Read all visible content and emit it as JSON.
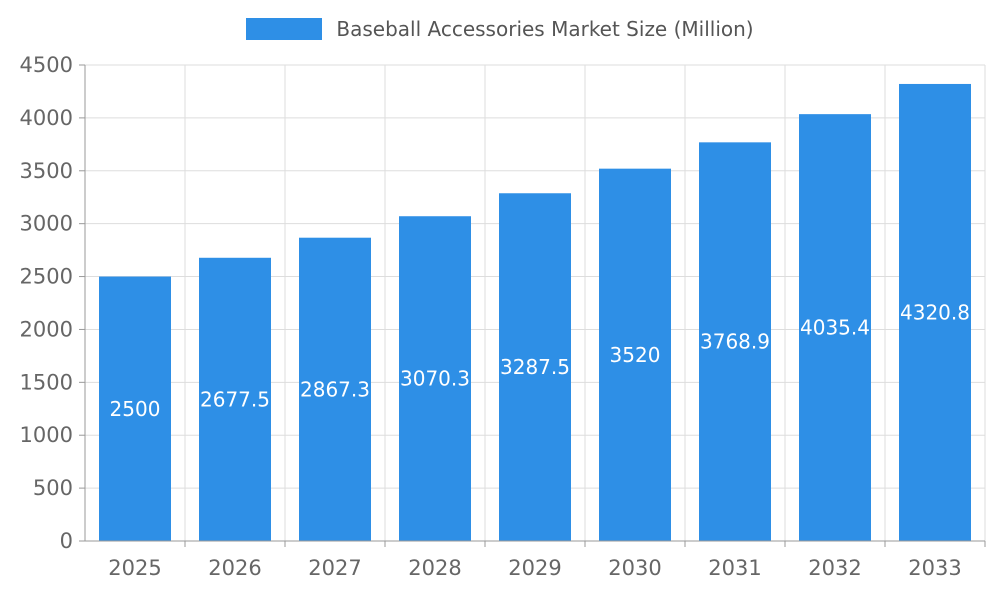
{
  "colors": {
    "bar": "#2E8FE6",
    "grid": "#DDDDDD",
    "axis": "#999999",
    "tick_text": "#666666",
    "title_text": "#555555",
    "value_text": "#FFFFFF"
  },
  "chart_data": {
    "type": "bar",
    "title": "Baseball Accessories Market Size (Million)",
    "categories": [
      "2025",
      "2026",
      "2027",
      "2028",
      "2029",
      "2030",
      "2031",
      "2032",
      "2033"
    ],
    "values": [
      2500,
      2677.5,
      2867.3,
      3070.3,
      3287.5,
      3520,
      3768.9,
      4035.4,
      4320.8
    ],
    "value_labels": [
      "2500",
      "2677.5",
      "2867.3",
      "3070.3",
      "3287.5",
      "3520",
      "3768.9",
      "4035.4",
      "4320.8"
    ],
    "ylim": [
      0,
      4500
    ],
    "ytick_step": 500,
    "ytick_labels": [
      "0",
      "500",
      "1000",
      "1500",
      "2000",
      "2500",
      "3000",
      "3500",
      "4000",
      "4500"
    ],
    "xlabel": "",
    "ylabel": "",
    "grid": "on",
    "legend_position": "top-center"
  }
}
